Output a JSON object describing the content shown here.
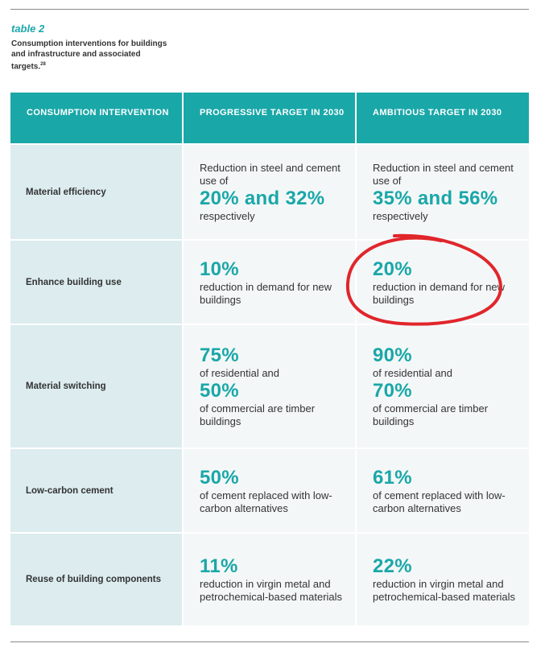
{
  "document": {
    "table_tag": "table 2",
    "caption": "Consumption interventions for buildings and infrastructure and associated targets.",
    "caption_ref": "28"
  },
  "table": {
    "headers": [
      "CONSUMPTION INTERVENTION",
      "PROGRESSIVE TARGET IN 2030",
      "AMBITIOUS TARGET IN 2030"
    ],
    "rows": [
      {
        "label": "Material efficiency",
        "progressive": {
          "pre": "Reduction in steel and cement use of",
          "big": "20% and 32%",
          "post": "respectively"
        },
        "ambitious": {
          "pre": "Reduction in steel and cement use of",
          "big": "35% and 56%",
          "post": "respectively"
        }
      },
      {
        "label": "Enhance building use",
        "progressive": {
          "big": "10%",
          "post": "reduction in demand for new buildings"
        },
        "ambitious": {
          "big": "20%",
          "post": "reduction in demand for new buildings"
        }
      },
      {
        "label": "Material switching",
        "progressive": {
          "big1": "75%",
          "mid": "of residential and",
          "big2": "50%",
          "post": "of commercial are timber buildings"
        },
        "ambitious": {
          "big1": "90%",
          "mid": "of residential and",
          "big2": "70%",
          "post": "of commercial are timber buildings"
        }
      },
      {
        "label": "Low-carbon cement",
        "progressive": {
          "big": "50%",
          "post": "of cement replaced with low-carbon alternatives"
        },
        "ambitious": {
          "big": "61%",
          "post": "of cement replaced with low-carbon alternatives"
        }
      },
      {
        "label": "Reuse of building components",
        "progressive": {
          "big": "11%",
          "post": "reduction in virgin metal and petrochemical-based materials"
        },
        "ambitious": {
          "big": "22%",
          "post": "reduction in virgin metal and petrochemical-based materials"
        }
      }
    ]
  },
  "colors": {
    "accent": "#1aa7a8",
    "label_bg": "#dcecef",
    "cell_bg": "#f4f7f8",
    "annotation": "#e0262b"
  }
}
